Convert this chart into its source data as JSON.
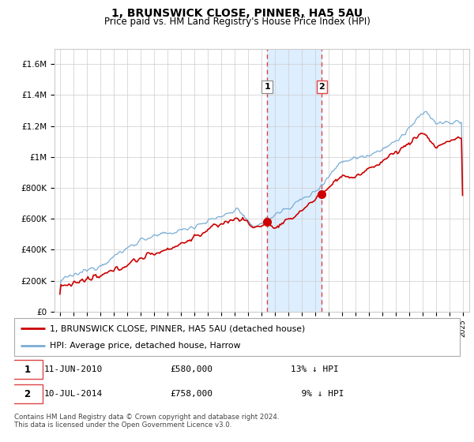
{
  "title": "1, BRUNSWICK CLOSE, PINNER, HA5 5AU",
  "subtitle": "Price paid vs. HM Land Registry's House Price Index (HPI)",
  "ylabel_ticks": [
    "£0",
    "£200K",
    "£400K",
    "£600K",
    "£800K",
    "£1M",
    "£1.2M",
    "£1.4M",
    "£1.6M"
  ],
  "ytick_values": [
    0,
    200000,
    400000,
    600000,
    800000,
    1000000,
    1200000,
    1400000,
    1600000
  ],
  "ylim": [
    0,
    1700000
  ],
  "xlim_start": 1994.6,
  "xlim_end": 2025.5,
  "transaction1": {
    "date": 2010.44,
    "price": 580000,
    "label": "1"
  },
  "transaction2": {
    "date": 2014.52,
    "price": 758000,
    "label": "2"
  },
  "legend_line1": "1, BRUNSWICK CLOSE, PINNER, HA5 5AU (detached house)",
  "legend_line2": "HPI: Average price, detached house, Harrow",
  "footer": "Contains HM Land Registry data © Crown copyright and database right 2024.\nThis data is licensed under the Open Government Licence v3.0.",
  "line_color_red": "#cc0000",
  "line_color_blue": "#7aadd4",
  "highlight_color": "#ddeeff",
  "vline_color": "#dd4444",
  "background_color": "#ffffff",
  "grid_color": "#cccccc",
  "title_fontsize": 10,
  "subtitle_fontsize": 8.5
}
